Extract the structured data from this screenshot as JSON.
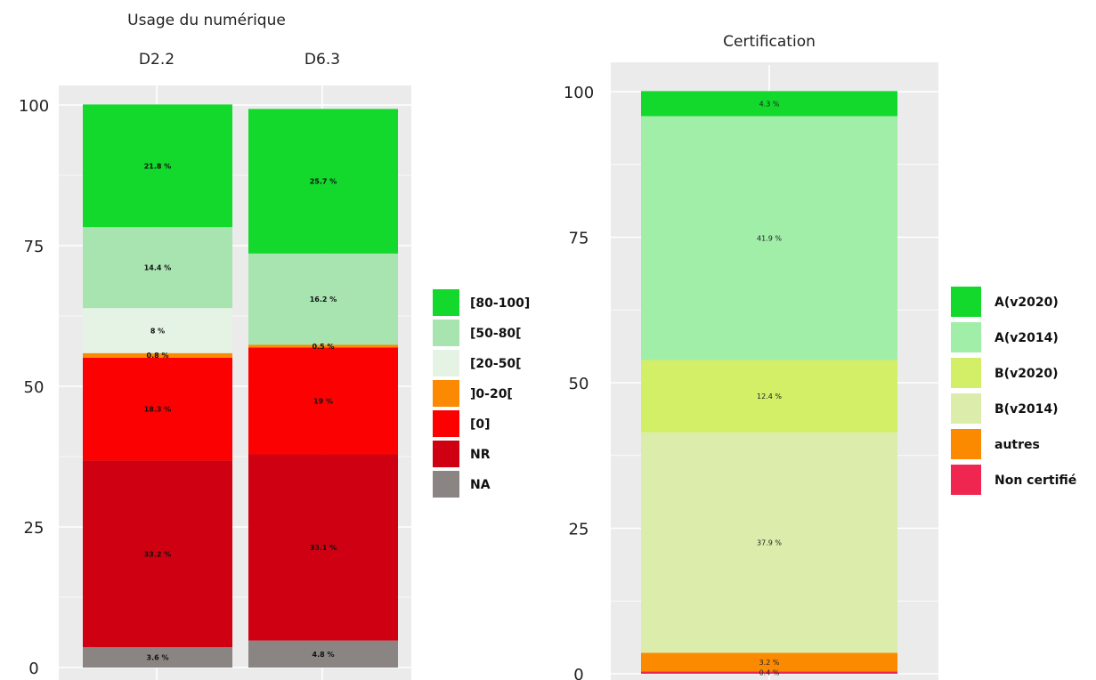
{
  "chart_data": [
    {
      "type": "bar",
      "stacked": true,
      "title": "Usage du numérique",
      "categories": [
        "D2.2",
        "D6.3"
      ],
      "ylim": [
        0,
        100
      ],
      "yticks": [
        "0",
        "25",
        "50",
        "75",
        "100"
      ],
      "grid": true,
      "legend": "right",
      "series": [
        {
          "name": "NA",
          "color": "#8a8483",
          "values": [
            3.6,
            4.8
          ],
          "labels": [
            "3.6 %",
            "4.8 %"
          ]
        },
        {
          "name": "NR",
          "color": "#cf0011",
          "values": [
            33.2,
            33.1
          ],
          "labels": [
            "33.2 %",
            "33.1 %"
          ]
        },
        {
          "name": "[0]",
          "color": "#fc0101",
          "values": [
            18.3,
            19
          ],
          "labels": [
            "18.3 %",
            "19 %"
          ]
        },
        {
          "name": "]0-20[",
          "color": "#fb8a02",
          "values": [
            0.8,
            0.5
          ],
          "labels": [
            "0.8 %",
            "0.5 %"
          ]
        },
        {
          "name": "[20-50[",
          "color": "#e5f3e5",
          "values": [
            8,
            0
          ],
          "labels": [
            "8 %",
            ""
          ]
        },
        {
          "name": "[50-80[",
          "color": "#a7e4b0",
          "values": [
            14.4,
            16.2
          ],
          "labels": [
            "14.4 %",
            "16.2 %"
          ]
        },
        {
          "name": "[80-100]",
          "color": "#12d92c",
          "values": [
            21.8,
            25.7
          ],
          "labels": [
            "21.8 %",
            "25.7 %"
          ]
        }
      ],
      "legend_order": [
        "[80-100]",
        "[50-80[",
        "[20-50[",
        "]0-20[",
        "[0]",
        "NR",
        "NA"
      ]
    },
    {
      "type": "bar",
      "stacked": true,
      "title": "Certification",
      "categories": [
        ""
      ],
      "ylim": [
        0,
        100
      ],
      "yticks": [
        "0",
        "25",
        "50",
        "75",
        "100"
      ],
      "grid": true,
      "legend": "right",
      "series": [
        {
          "name": "Non certifié",
          "color": "#ef2650",
          "values": [
            0.4
          ],
          "labels": [
            "0.4 %"
          ]
        },
        {
          "name": "autres",
          "color": "#fc8a00",
          "values": [
            3.2
          ],
          "labels": [
            "3.2 %"
          ]
        },
        {
          "name": "B(v2014)",
          "color": "#dcedab",
          "values": [
            37.9
          ],
          "labels": [
            "37.9 %"
          ]
        },
        {
          "name": "B(v2020)",
          "color": "#d3ee67",
          "values": [
            12.4
          ],
          "labels": [
            "12.4 %"
          ]
        },
        {
          "name": "A(v2014)",
          "color": "#a0eea8",
          "values": [
            41.9
          ],
          "labels": [
            "41.9 %"
          ]
        },
        {
          "name": "A(v2020)",
          "color": "#12d92c",
          "values": [
            4.3
          ],
          "labels": [
            "4.3 %"
          ]
        }
      ],
      "legend_order": [
        "A(v2020)",
        "A(v2014)",
        "B(v2020)",
        "B(v2014)",
        "autres",
        "Non certifié"
      ]
    }
  ]
}
